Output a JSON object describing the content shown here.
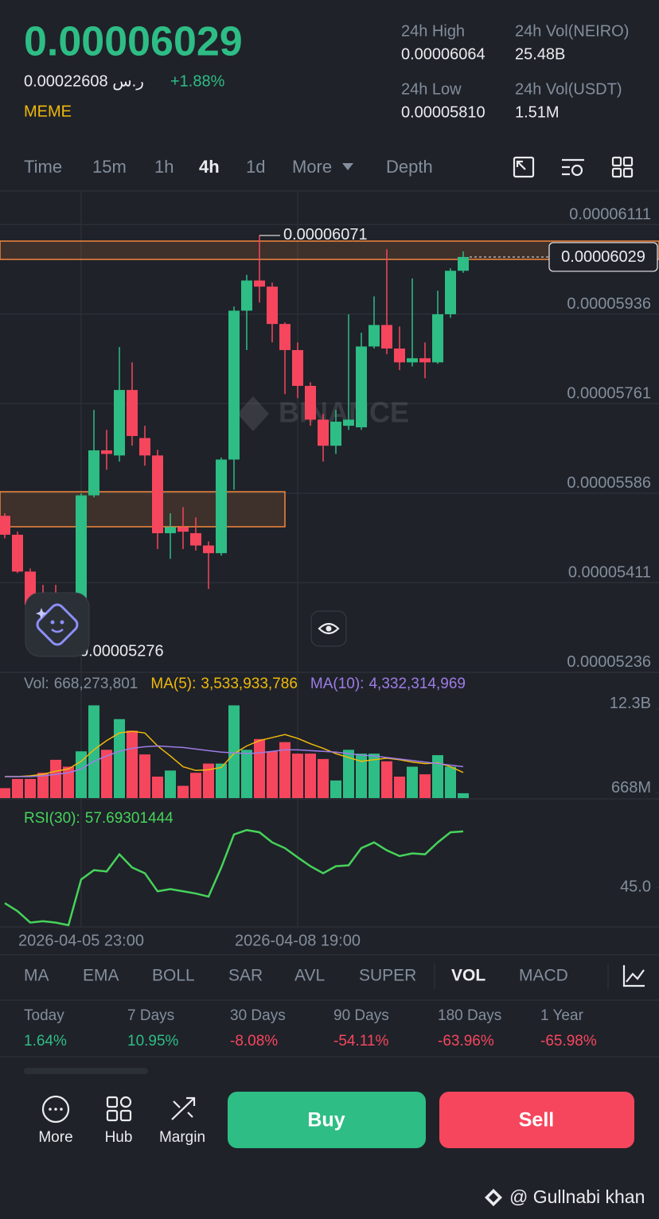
{
  "header": {
    "price": "0.00006029",
    "fiat_price": "0.00022608 ر.س",
    "change": "+1.88%",
    "tag": "MEME"
  },
  "stats": [
    {
      "label": "24h High",
      "value": "0.00006064"
    },
    {
      "label": "24h Vol(NEIRO)",
      "value": "25.48B"
    },
    {
      "label": "24h Low",
      "value": "0.00005810"
    },
    {
      "label": "24h Vol(USDT)",
      "value": "1.51M"
    }
  ],
  "timeframes": [
    "Time",
    "15m",
    "1h",
    "4h",
    "1d",
    "More",
    "Depth"
  ],
  "chart_data": [
    {
      "type": "candlestick",
      "watermark": "BINANCE",
      "up_color": "#2ebd85",
      "down_color": "#f6465d",
      "categories": [
        null,
        null,
        null,
        null,
        null,
        null,
        "2026-04-05 23:00",
        null,
        null,
        null,
        null,
        null,
        null,
        null,
        null,
        null,
        null,
        null,
        null,
        null,
        null,
        null,
        null,
        "2026-04-08 19:00",
        null,
        null,
        null,
        null,
        null,
        null,
        null,
        null,
        null,
        null,
        null,
        null,
        null
      ],
      "candles": [
        [
          5.523e-05,
          5.528e-05,
          5.479e-05,
          5.486e-05
        ],
        [
          5.486e-05,
          5.492e-05,
          5.411e-05,
          5.414e-05
        ],
        [
          5.414e-05,
          5.42e-05,
          5.333e-05,
          5.349e-05
        ],
        [
          5.349e-05,
          5.388e-05,
          5.318e-05,
          5.333e-05
        ],
        [
          5.333e-05,
          5.388e-05,
          5.3e-05,
          5.318e-05
        ],
        [
          5.318e-05,
          5.33e-05,
          5.285e-05,
          5.29e-05
        ],
        [
          5.29e-05,
          5.567e-05,
          5.276e-05,
          5.563e-05
        ],
        [
          5.563e-05,
          5.73e-05,
          5.559e-05,
          5.651e-05
        ],
        [
          5.651e-05,
          5.691e-05,
          5.613e-05,
          5.644e-05
        ],
        [
          5.641e-05,
          5.853e-05,
          5.629e-05,
          5.769e-05
        ],
        [
          5.769e-05,
          5.823e-05,
          5.66e-05,
          5.679e-05
        ],
        [
          5.675e-05,
          5.699e-05,
          5.621e-05,
          5.641e-05
        ],
        [
          5.641e-05,
          5.652e-05,
          5.458e-05,
          5.489e-05
        ],
        [
          5.489e-05,
          5.528e-05,
          5.439e-05,
          5.501e-05
        ],
        [
          5.501e-05,
          5.54e-05,
          5.458e-05,
          5.492e-05
        ],
        [
          5.489e-05,
          5.52e-05,
          5.455e-05,
          5.465e-05
        ],
        [
          5.465e-05,
          5.473e-05,
          5.38e-05,
          5.45e-05
        ],
        [
          5.45e-05,
          5.637e-05,
          5.445e-05,
          5.633e-05
        ],
        [
          5.633e-05,
          5.932e-05,
          5.574e-05,
          5.924e-05
        ],
        [
          5.924e-05,
          5.994e-05,
          5.847e-05,
          5.983e-05
        ],
        [
          5.983e-05,
          6.071e-05,
          5.94e-05,
          5.971e-05
        ],
        [
          5.971e-05,
          5.979e-05,
          5.862e-05,
          5.898e-05
        ],
        [
          5.898e-05,
          5.901e-05,
          5.761e-05,
          5.847e-05
        ],
        [
          5.847e-05,
          5.862e-05,
          5.753e-05,
          5.777e-05
        ],
        [
          5.777e-05,
          5.784e-05,
          5.699e-05,
          5.711e-05
        ],
        [
          5.711e-05,
          5.722e-05,
          5.629e-05,
          5.66e-05
        ],
        [
          5.66e-05,
          5.73e-05,
          5.644e-05,
          5.707e-05
        ],
        [
          5.699e-05,
          5.917e-05,
          5.691e-05,
          5.711e-05
        ],
        [
          5.696e-05,
          5.881e-05,
          5.691e-05,
          5.854e-05
        ],
        [
          5.854e-05,
          5.952e-05,
          5.85e-05,
          5.896e-05
        ],
        [
          5.896e-05,
          6.044e-05,
          5.839e-05,
          5.85e-05
        ],
        [
          5.85e-05,
          5.893e-05,
          5.808e-05,
          5.823e-05
        ],
        [
          5.823e-05,
          5.987e-05,
          5.815e-05,
          5.831e-05
        ],
        [
          5.831e-05,
          5.862e-05,
          5.792e-05,
          5.823e-05
        ],
        [
          5.823e-05,
          5.963e-05,
          5.82e-05,
          5.917e-05
        ],
        [
          5.917e-05,
          6.007e-05,
          5.91e-05,
          6.002e-05
        ],
        [
          6.002e-05,
          6.04e-05,
          5.998e-05,
          6.029e-05
        ]
      ],
      "ylim": [
        5.217e-05,
        6.158e-05
      ],
      "yticks": [
        6.111e-05,
        5.936e-05,
        5.761e-05,
        5.586e-05,
        5.411e-05,
        5.236e-05
      ],
      "high_mark": 6.071e-05,
      "low_mark": 5.276e-05,
      "last_price": 6.029e-05
    },
    {
      "type": "bar",
      "series": [
        {
          "name": "Vol:",
          "values": [
            1.37,
            2.64,
            2.64,
            3.49,
            5.28,
            4.33,
            6.45,
            12.79,
            6.66,
            10.89,
            9.3,
            6.02,
            2.96,
            3.8,
            1.69,
            3.49,
            4.76,
            4.76,
            12.79,
            6.66,
            8.14,
            6.45,
            7.72,
            6.13,
            6.13,
            5.39,
            2.43,
            6.66,
            6.13,
            6.13,
            5.07,
            2.96,
            4.33,
            3.28,
            5.92,
            4.33,
            0.668273801
          ],
          "value_label": "668,273,801"
        },
        {
          "name": "MA(5):",
          "color": "#f0b90b",
          "values": [
            2.96,
            2.96,
            3.07,
            3.28,
            3.7,
            4.02,
            5.07,
            6.66,
            7.93,
            8.98,
            9.2,
            8.98,
            7.19,
            5.81,
            4.33,
            3.81,
            3.91,
            4.23,
            6.13,
            7.19,
            7.93,
            8.35,
            8.77,
            8.24,
            7.5,
            6.87,
            6.13,
            5.6,
            5.07,
            5.29,
            5.5,
            5.29,
            4.97,
            4.76,
            4.86,
            4.33,
            3.533933786
          ],
          "value_label": "3,533,933,786"
        },
        {
          "name": "MA(10):",
          "color": "#9d7ce6",
          "values": [
            2.96,
            2.96,
            2.96,
            3.07,
            3.28,
            3.49,
            4.02,
            5.07,
            5.81,
            6.45,
            6.87,
            7.08,
            7.19,
            7.08,
            6.98,
            6.76,
            6.55,
            6.34,
            6.24,
            6.13,
            6.24,
            6.45,
            6.66,
            6.66,
            6.55,
            6.45,
            6.34,
            6.13,
            5.92,
            5.81,
            5.6,
            5.39,
            5.18,
            4.97,
            4.76,
            4.54,
            4.332314969
          ],
          "value_label": "4,332,314,969"
        }
      ],
      "ylim": [
        0,
        13.5
      ],
      "yticks": [
        {
          "value": 12.3,
          "label": "12.3B"
        },
        {
          "value": 0.668,
          "label": "668M"
        }
      ]
    },
    {
      "type": "line",
      "series": [
        {
          "name": "RSI(30):",
          "color": "#46d35a",
          "values": [
            41.4,
            39.6,
            37.0,
            37.3,
            37.0,
            36.4,
            46.8,
            48.9,
            48.6,
            52.5,
            49.5,
            48.2,
            44.1,
            44.6,
            44.1,
            43.6,
            42.9,
            49.5,
            57.0,
            58.0,
            57.5,
            55.2,
            53.9,
            51.8,
            49.8,
            48.2,
            49.8,
            50.0,
            53.9,
            55.2,
            53.4,
            52.1,
            52.7,
            52.5,
            55.2,
            57.5,
            57.69301444
          ],
          "value_label": "57.69301444"
        }
      ],
      "ylim": [
        36,
        64
      ],
      "yticks": [
        {
          "value": 45,
          "label": "45.0"
        }
      ]
    }
  ],
  "indicators": [
    "MA",
    "EMA",
    "BOLL",
    "SAR",
    "AVL",
    "SUPER",
    "VOL",
    "MACD"
  ],
  "performance": [
    {
      "label": "Today",
      "value": "1.64%"
    },
    {
      "label": "7 Days",
      "value": "10.95%"
    },
    {
      "label": "30 Days",
      "value": "-8.08%"
    },
    {
      "label": "90 Days",
      "value": "-54.11%"
    },
    {
      "label": "180 Days",
      "value": "-63.96%"
    },
    {
      "label": "1 Year",
      "value": "-65.98%"
    }
  ],
  "nav": [
    "More",
    "Hub",
    "Margin"
  ],
  "actions": {
    "buy": "Buy",
    "sell": "Sell"
  },
  "footer": "@ Gullnabi khan"
}
